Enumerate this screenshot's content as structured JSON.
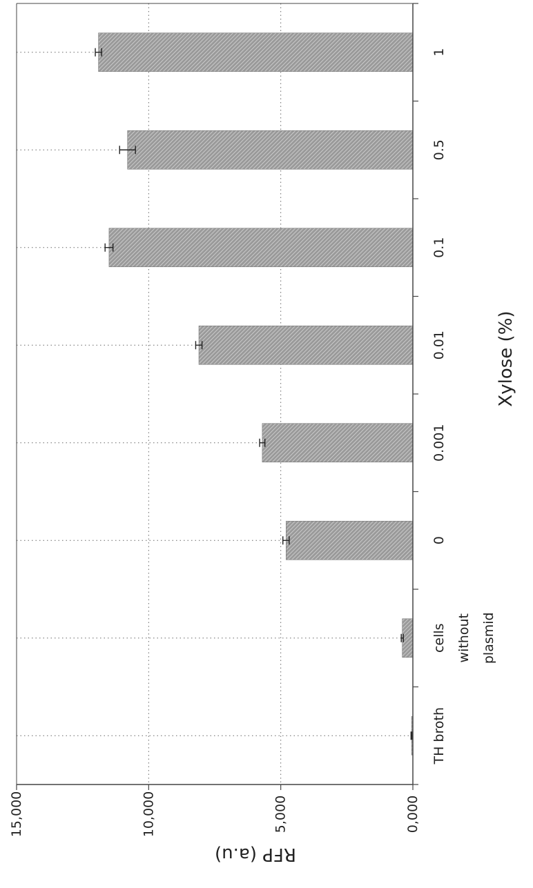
{
  "chart_data": {
    "type": "bar",
    "orientation": "horizontal-bars (figure rotated 90°)",
    "categories": [
      [
        "TH broth"
      ],
      [
        "cells",
        "without",
        "plasmid"
      ],
      [
        "0"
      ],
      [
        "0.001"
      ],
      [
        "0.01"
      ],
      [
        "0.1"
      ],
      [
        "0.5"
      ],
      [
        "1"
      ]
    ],
    "values": [
      50,
      400,
      4800,
      5700,
      8100,
      11500,
      10800,
      11900
    ],
    "errors": [
      20,
      40,
      120,
      100,
      120,
      150,
      300,
      120
    ],
    "xlabel": "Xylose (%)",
    "ylabel": "RFP (a.u)",
    "ylim": [
      0,
      15000
    ],
    "yticks": [
      0,
      5000,
      10000,
      15000
    ],
    "ytick_labels": [
      "0,000",
      "5,000",
      "10,000",
      "15,000"
    ],
    "grid": "dotted",
    "legend": "none",
    "colors": {
      "bar_fill": "#9a9a9a",
      "bar_hatch": "#d6d6d6",
      "axis": "#444444",
      "grid": "#666666"
    }
  }
}
